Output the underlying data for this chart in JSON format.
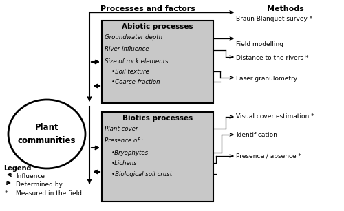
{
  "title_left": "Processes and factors",
  "title_right": "Methods",
  "box_color": "#c8c8c8",
  "box_edge": "#000000",
  "bg_color": "#ffffff",
  "abiotic_title": "Abiotic processes",
  "abiotic_items": [
    "Groundwater depth",
    "River influence",
    "Size of rock elements:",
    "•Soil texture",
    "•Coarse fraction"
  ],
  "biotic_title": "Biotics processes",
  "biotic_items": [
    "Plant cover",
    "Presence of :",
    "•Bryophytes",
    "•Lichens",
    "•Biological soil crust"
  ],
  "methods": [
    "Braun-Blanquet survey *",
    "Field modelling",
    "Distance to the rivers *",
    "Laser granulometry",
    "Visual cover estimation *",
    "Identification",
    "Presence / absence *"
  ],
  "ellipse_label": "Plant\ncommunities",
  "legend_title": "Legend",
  "legend_lines": [
    "←    Influence",
    "→    Determined by",
    "*     Measured in the field"
  ]
}
